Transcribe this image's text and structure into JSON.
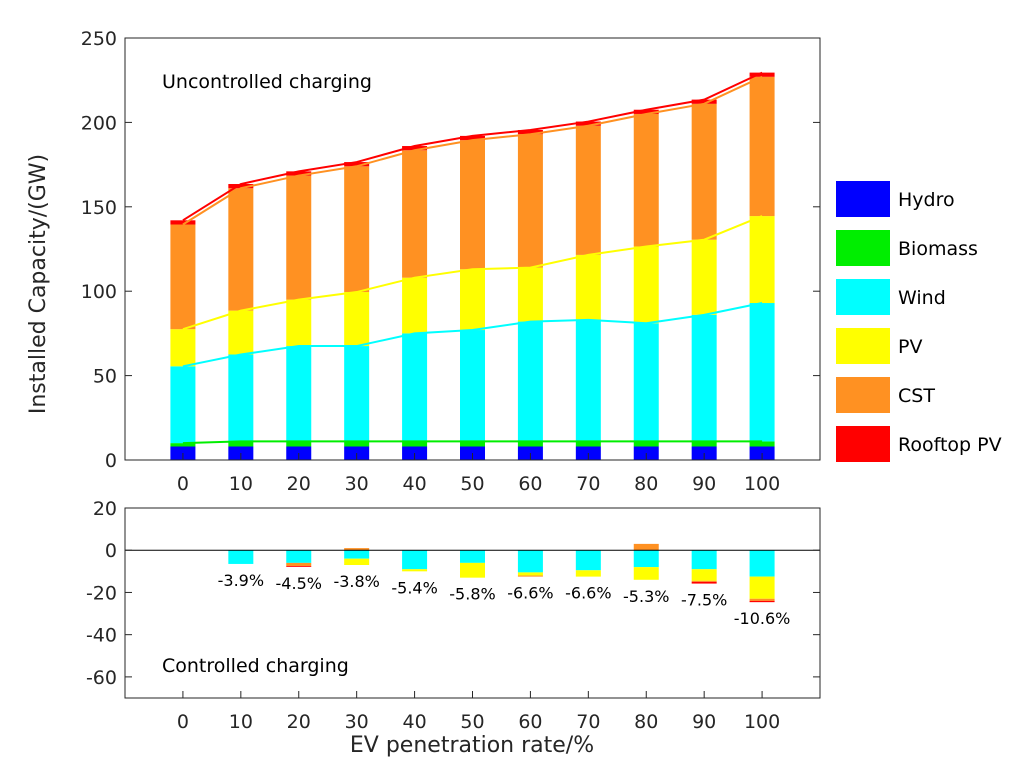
{
  "chart_data": [
    {
      "type": "stacked-bar",
      "panel_label": "Uncontrolled charging",
      "ylabel": "Installed Capacity/(GW)",
      "ylim": [
        0,
        250
      ],
      "yticks": [
        0,
        50,
        100,
        150,
        200,
        250
      ],
      "categories": [
        "0",
        "10",
        "20",
        "30",
        "40",
        "50",
        "60",
        "70",
        "80",
        "90",
        "100"
      ],
      "series": [
        {
          "name": "Hydro",
          "color": "#0000ff",
          "values": [
            8,
            8,
            8,
            8,
            8,
            8,
            8,
            8,
            8,
            8,
            8
          ]
        },
        {
          "name": "Biomass",
          "color": "#00ee00",
          "values": [
            2,
            3,
            3,
            3,
            3,
            3,
            3,
            3,
            3,
            3,
            3
          ]
        },
        {
          "name": "Wind",
          "color": "#00ffff",
          "values": [
            45.5,
            51.5,
            56.5,
            56.5,
            64,
            66,
            71,
            72,
            70,
            75,
            82
          ]
        },
        {
          "name": "PV",
          "color": "#ffff00",
          "values": [
            22,
            26,
            27.5,
            32,
            33,
            36,
            32,
            38.5,
            45.5,
            44.5,
            51.5
          ]
        },
        {
          "name": "CST",
          "color": "#ff9122",
          "values": [
            62,
            72.5,
            73.5,
            74.5,
            75.5,
            76.5,
            79,
            76.5,
            78.5,
            80.5,
            82.5
          ]
        },
        {
          "name": "Rooftop PV",
          "color": "#ff0000",
          "values": [
            2.5,
            2.5,
            2.5,
            2.5,
            2.5,
            2.5,
            2.5,
            2.5,
            2.5,
            2.5,
            2.5
          ]
        }
      ],
      "legend_position": "outside-right"
    },
    {
      "type": "stacked-bar",
      "panel_label": "Controlled charging",
      "xlabel": "EV penetration rate/%",
      "ylim": [
        -70,
        20
      ],
      "yticks": [
        20,
        0,
        -20,
        -40,
        -60
      ],
      "categories": [
        "0",
        "10",
        "20",
        "30",
        "40",
        "50",
        "60",
        "70",
        "80",
        "90",
        "100"
      ],
      "series": [
        {
          "name": "Wind",
          "color": "#00ffff",
          "values": [
            0,
            -6.5,
            -6,
            -4,
            -9,
            -6,
            -10.5,
            -9.5,
            -8,
            -9,
            -12.5
          ]
        },
        {
          "name": "PV",
          "color": "#ffff00",
          "values": [
            0,
            0,
            0,
            -3,
            -1,
            -7,
            -1.5,
            -3,
            -6,
            -5.5,
            -10.5
          ]
        },
        {
          "name": "CST",
          "color": "#ff9122",
          "values": [
            0,
            0,
            -1.5,
            1,
            0,
            0,
            -0.5,
            0,
            3,
            -0.5,
            -1
          ]
        },
        {
          "name": "Rooftop PV",
          "color": "#ff0000",
          "values": [
            0,
            0,
            -0.4,
            0,
            0,
            0,
            0,
            0,
            0,
            -0.8,
            -0.6
          ]
        }
      ],
      "annotations": [
        "",
        "-3.9%",
        "-4.5%",
        "-3.8%",
        "-5.4%",
        "-5.8%",
        "-6.6%",
        "-6.6%",
        "-5.3%",
        "-7.5%",
        "-10.6%"
      ]
    }
  ]
}
